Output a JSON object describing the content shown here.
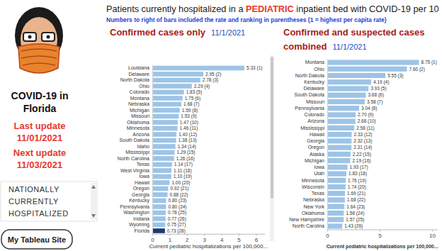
{
  "page": {
    "title_parts": [
      "Patients currently hospitalized in a ",
      "PEDIATRIC",
      " inpatient bed with COVID-19 per 10"
    ],
    "subtitle": "Numbers to right of bars included the rate and ranking in parentheses (1 = highest per capita rate)",
    "sidebar_title": [
      "COVID-19 in",
      "Florida"
    ],
    "last_update_label": "Last update",
    "last_update": "11/01/2021",
    "next_update_label": "Next update",
    "next_update": "11/03/2021",
    "menu_items": [
      "NATIONALLY",
      "CURRENTLY",
      "HOSPITALIZED"
    ],
    "button": "My Tableau Site"
  },
  "chart_data": [
    {
      "type": "bar",
      "orientation": "horizontal",
      "title": "Confirmed cases only",
      "subtitle": "11/1/2021",
      "categories": [
        "Louisiana",
        "Delaware",
        "North Dakota",
        "Ohio",
        "Colorado",
        "Montana",
        "Nebraska",
        "Michigan",
        "Missouri",
        "Oklahoma",
        "Minnesota",
        "Arizona",
        "South Dakota",
        "Idaho",
        "Mississippi",
        "North Carolina",
        "Texas",
        "West Virginia",
        "Iowa",
        "Hawaii",
        "Oregon",
        "Georgia",
        "Kentucky",
        "Pennsylvania",
        "Washington",
        "Indiana",
        "Wyoming",
        "Florida"
      ],
      "values": [
        5.33,
        2.95,
        2.78,
        2.29,
        1.83,
        1.75,
        1.68,
        1.59,
        1.53,
        1.47,
        1.46,
        1.4,
        1.38,
        1.34,
        1.29,
        1.26,
        1.14,
        1.11,
        1.1,
        1.0,
        0.92,
        0.88,
        0.8,
        0.8,
        0.78,
        0.77,
        0.75,
        0.73
      ],
      "value_labels": [
        "5.33 (1)",
        "2.95 (2)",
        "2.78 (3)",
        "2.29 (4)",
        "1.83 (5)",
        "1.75 (6)",
        "1.68 (7)",
        "1.59 (8)",
        "1.53 (9)",
        "1.47 (10)",
        "1.46 (11)",
        "1.40 (12)",
        "1.38 (13)",
        "1.34 (14)",
        "1.29 (15)",
        "1.26 (16)",
        "1.14 (17)",
        "1.11 (18)",
        "1.10 (19)",
        "1.00 (20)",
        "0.92 (21)",
        "0.88 (22)",
        "0.80 (23)",
        "0.80 (24)",
        "0.78 (25)",
        "0.77 (26)",
        "0.75 (27)",
        "0.73 (28)"
      ],
      "colors": [
        "#9dc4e6",
        "#9dc4e6",
        "#9dc4e6",
        "#9dc4e6",
        "#9dc4e6",
        "#9dc4e6",
        "#9dc4e6",
        "#9dc4e6",
        "#9dc4e6",
        "#9dc4e6",
        "#9dc4e6",
        "#9dc4e6",
        "#9dc4e6",
        "#9dc4e6",
        "#9dc4e6",
        "#9dc4e6",
        "#9dc4e6",
        "#9dc4e6",
        "#9dc4e6",
        "#9dc4e6",
        "#9dc4e6",
        "#9dc4e6",
        "#9dc4e6",
        "#9dc4e6",
        "#9dc4e6",
        "#9dc4e6",
        "#9dc4e6",
        "#1f3a70"
      ],
      "xlim": [
        0,
        6.5
      ],
      "xticks": [
        0,
        1,
        2,
        3,
        4,
        5,
        6
      ],
      "x_label": "Current pediatric hospitalizations per 100,000...",
      "data_labels": true,
      "grid": false
    },
    {
      "type": "bar",
      "orientation": "horizontal",
      "title": "Confirmed and suspected cases combined",
      "subtitle": "11/1/2021",
      "categories": [
        "Montana",
        "Ohio",
        "North Dakota",
        "Kentucky",
        "Delaware",
        "South Dakota",
        "Missouri",
        "Pennsylvania",
        "Colorado",
        "Arizona",
        "Mississippi",
        "Hawaii",
        "Georgia",
        "Oregon",
        "Alaska",
        "Michigan",
        "Iowa",
        "Utah",
        "Minnesota",
        "Wisconsin",
        "Texas",
        "Nebraska",
        "New York",
        "Oklahoma",
        "New Hampshire",
        "North Carolina"
      ],
      "values": [
        8.75,
        7.6,
        5.55,
        4.19,
        3.93,
        3.68,
        3.58,
        3.04,
        2.7,
        2.68,
        2.58,
        2.33,
        2.32,
        2.31,
        2.22,
        2.19,
        1.93,
        1.83,
        1.76,
        1.74,
        1.69,
        1.68,
        1.64,
        1.58,
        1.57,
        1.43
      ],
      "value_labels": [
        "8.75 (1)",
        "7.60 (2)",
        "5.55 (3)",
        "4.19 (4)",
        "3.93 (5)",
        "3.68 (6)",
        "3.58 (7)",
        "3.04 (8)",
        "2.70 (9)",
        "2.68 (10)",
        "2.58 (11)",
        "2.33 (12)",
        "2.32 (13)",
        "2.31 (14)",
        "2.22 (15)",
        "2.19 (16)",
        "1.93 (17)",
        "1.83 (18)",
        "1.76 (19)",
        "1.74 (20)",
        "1.69 (21)",
        "1.68 (22)",
        "1.64 (23)",
        "1.58 (24)",
        "1.57 (25)",
        "1.43 (26)"
      ],
      "color": "#9dc4e6",
      "xlim": [
        0,
        10.5
      ],
      "xticks": [
        0,
        5,
        10
      ],
      "x_label": "Current pediatric hospitalizations per 100,000...",
      "data_labels": true,
      "grid": false
    }
  ]
}
